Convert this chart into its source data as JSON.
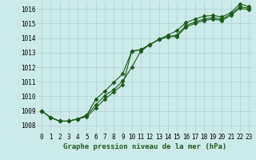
{
  "xlabel": "Graphe pression niveau de la mer (hPa)",
  "ylim": [
    1007.5,
    1016.5
  ],
  "xlim": [
    -0.5,
    23.5
  ],
  "yticks": [
    1008,
    1009,
    1010,
    1011,
    1012,
    1013,
    1014,
    1015,
    1016
  ],
  "xticks": [
    0,
    1,
    2,
    3,
    4,
    5,
    6,
    7,
    8,
    9,
    10,
    11,
    12,
    13,
    14,
    15,
    16,
    17,
    18,
    19,
    20,
    21,
    22,
    23
  ],
  "bg_color": "#cdeaea",
  "grid_color": "#aacfcf",
  "line_color": "#1a5c1a",
  "line1": [
    1009.0,
    1008.55,
    1008.3,
    1008.3,
    1008.45,
    1008.6,
    1009.2,
    1009.8,
    1010.3,
    1010.8,
    1013.1,
    1013.2,
    1013.55,
    1013.9,
    1014.1,
    1014.1,
    1014.75,
    1015.0,
    1015.2,
    1015.3,
    1015.2,
    1015.55,
    1016.05,
    1015.95
  ],
  "line2": [
    1009.0,
    1008.55,
    1008.3,
    1008.3,
    1008.45,
    1008.7,
    1009.4,
    1010.05,
    1010.45,
    1011.05,
    1012.0,
    1013.1,
    1013.55,
    1013.9,
    1014.1,
    1014.2,
    1014.85,
    1015.1,
    1015.3,
    1015.4,
    1015.3,
    1015.65,
    1016.15,
    1016.05
  ],
  "line3": [
    1009.0,
    1008.55,
    1008.3,
    1008.3,
    1008.45,
    1008.7,
    1009.8,
    1010.35,
    1010.95,
    1011.55,
    1013.1,
    1013.2,
    1013.55,
    1013.9,
    1014.2,
    1014.5,
    1015.05,
    1015.3,
    1015.5,
    1015.55,
    1015.45,
    1015.75,
    1016.35,
    1016.15
  ],
  "marker": "D",
  "marker_size": 2.5,
  "linewidth": 0.8,
  "tick_fontsize": 5.5,
  "xlabel_fontsize": 6.5
}
